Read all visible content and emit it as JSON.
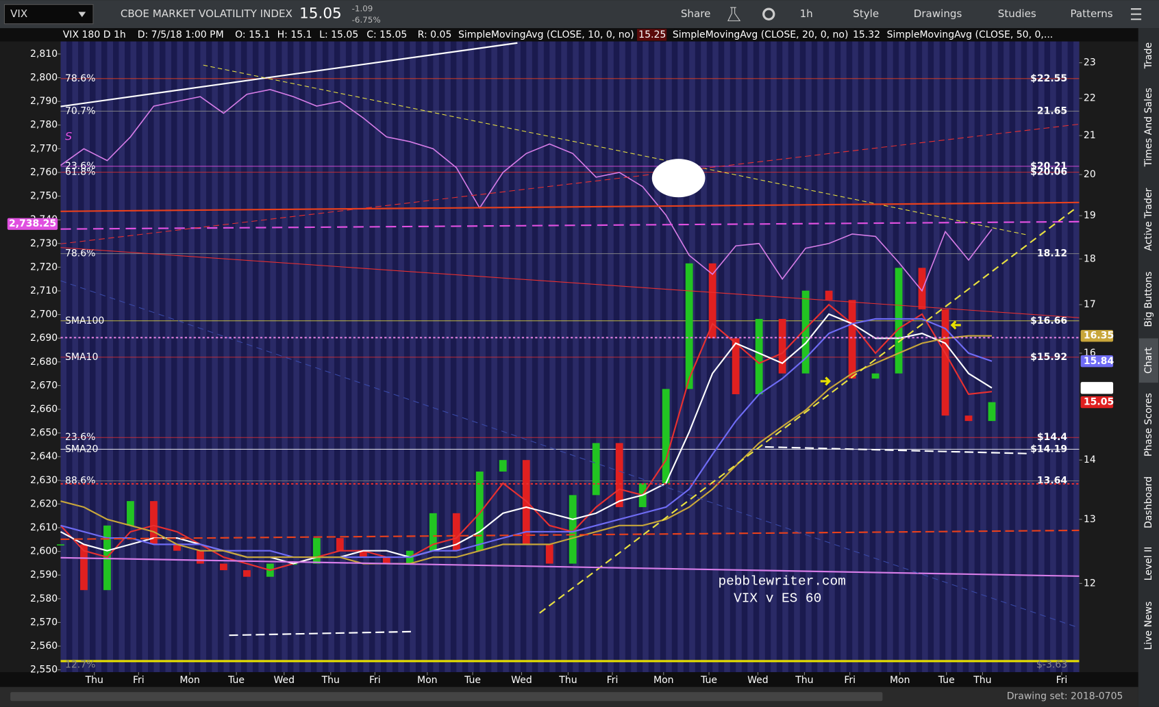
{
  "toolbar": {
    "symbol": "VIX",
    "description": "CBOE MARKET VOLATILITY INDEX",
    "last": 15.05,
    "change": "-1.09",
    "change_pct": "-6.75%",
    "buttons": [
      "Share",
      "1h",
      "Style",
      "Drawings",
      "Studies",
      "Patterns"
    ]
  },
  "info_bar": {
    "title": "VIX 180 D 1h",
    "date": "D: 7/5/18 1:00 PM",
    "open": "O: 15.1",
    "high": "H: 15.1",
    "low": "L: 15.05",
    "close": "C: 15.05",
    "range": "R: 0.05",
    "studies": [
      {
        "text": "SimpleMovingAvg (CLOSE, 10, 0, no)",
        "value": 15.25,
        "color": "#e83030"
      },
      {
        "text": "SimpleMovingAvg (CLOSE, 20, 0, no)",
        "value": 15.32,
        "color": "#ffffff"
      },
      {
        "text": "SimpleMovingAvg (CLOSE, 50, 0,...",
        "color": "#8a7cff"
      }
    ]
  },
  "chart_data": {
    "type": "line",
    "x": [
      0,
      2,
      4,
      6,
      8,
      10,
      12,
      14,
      16,
      18,
      20,
      22,
      24,
      26,
      28,
      30,
      32,
      34,
      36,
      38,
      40,
      42,
      44,
      46,
      48,
      50,
      52,
      54,
      56,
      58,
      60,
      62,
      64,
      66,
      68,
      70,
      72,
      74,
      76,
      78,
      80
    ],
    "xlim": [
      0,
      87.5
    ],
    "xticks": [
      {
        "value": 2.9,
        "label": "Thu"
      },
      {
        "value": 6.7,
        "label": "Fri"
      },
      {
        "value": 11.1,
        "label": "Mon"
      },
      {
        "value": 15.1,
        "label": "Tue"
      },
      {
        "value": 19.2,
        "label": "Wed"
      },
      {
        "value": 23.2,
        "label": "Thu"
      },
      {
        "value": 27,
        "label": "Fri"
      },
      {
        "value": 31.5,
        "label": "Mon"
      },
      {
        "value": 35.4,
        "label": "Tue"
      },
      {
        "value": 39.6,
        "label": "Wed"
      },
      {
        "value": 43.6,
        "label": "Thu"
      },
      {
        "value": 47.4,
        "label": "Fri"
      },
      {
        "value": 51.8,
        "label": "Mon"
      },
      {
        "value": 55.7,
        "label": "Tue"
      },
      {
        "value": 59.9,
        "label": "Wed"
      },
      {
        "value": 63.9,
        "label": "Thu"
      },
      {
        "value": 67.8,
        "label": "Fri"
      },
      {
        "value": 72.1,
        "label": "Mon"
      },
      {
        "value": 76.1,
        "label": "Tue"
      },
      {
        "value": 79.2,
        "label": "Thu"
      },
      {
        "value": 86,
        "label": "Fri"
      }
    ],
    "ylim": [
      2549,
      2815.3
    ],
    "yticks": [
      {
        "value": 2550,
        "label": "2,550"
      },
      {
        "value": 2560,
        "label": "2,560"
      },
      {
        "value": 2570,
        "label": "2,570"
      },
      {
        "value": 2580,
        "label": "2,580"
      },
      {
        "value": 2590,
        "label": "2,590"
      },
      {
        "value": 2600,
        "label": "2,600"
      },
      {
        "value": 2610,
        "label": "2,610"
      },
      {
        "value": 2620,
        "label": "2,620"
      },
      {
        "value": 2630,
        "label": "2,630"
      },
      {
        "value": 2640,
        "label": "2,640"
      },
      {
        "value": 2650,
        "label": "2,650"
      },
      {
        "value": 2660,
        "label": "2,660"
      },
      {
        "value": 2670,
        "label": "2,670"
      },
      {
        "value": 2680,
        "label": "2,680"
      },
      {
        "value": 2690,
        "label": "2,690"
      },
      {
        "value": 2700,
        "label": "2,700"
      },
      {
        "value": 2710,
        "label": "2,710"
      },
      {
        "value": 2720,
        "label": "2,720"
      },
      {
        "value": 2730,
        "label": "2,730"
      },
      {
        "value": 2740,
        "label": "2,740"
      },
      {
        "value": 2750,
        "label": "2,750"
      },
      {
        "value": 2760,
        "label": "2,760"
      },
      {
        "value": 2770,
        "label": "2,770"
      },
      {
        "value": 2780,
        "label": "2,780"
      },
      {
        "value": 2790,
        "label": "2,790"
      },
      {
        "value": 2800,
        "label": "2,800"
      },
      {
        "value": 2810,
        "label": "2,810"
      }
    ],
    "y2lim": [
      10.74,
      23.62
    ],
    "y2_log": true,
    "y2ticks": [
      12,
      13,
      14,
      16,
      17,
      18,
      19,
      20,
      21,
      22,
      23
    ],
    "es_last": {
      "value": 2738.25,
      "label": "2,738.25"
    },
    "series": [
      {
        "name": "VIX",
        "axis": "y2",
        "style": "bars",
        "color": "#22c422",
        "down_color": "#e02020",
        "last": 15.05,
        "values": [
          12.6,
          11.9,
          12.9,
          13.3,
          12.6,
          12.5,
          12.3,
          12.2,
          12.1,
          12.3,
          12.3,
          12.7,
          12.5,
          12.4,
          12.3,
          12.5,
          13.1,
          12.5,
          13.8,
          14.0,
          12.6,
          12.3,
          13.4,
          14.3,
          13.2,
          13.6,
          15.3,
          17.9,
          16.3,
          15.2,
          16.7,
          15.6,
          17.3,
          17.1,
          15.5,
          15.6,
          17.8,
          16.9,
          14.8,
          14.7,
          15.05
        ]
      },
      {
        "name": "SMA10",
        "axis": "y2",
        "style": "line",
        "color": "#e83030",
        "values": [
          12.9,
          12.5,
          12.4,
          12.8,
          12.9,
          12.8,
          12.6,
          12.4,
          12.3,
          12.2,
          12.3,
          12.4,
          12.5,
          12.5,
          12.4,
          12.4,
          12.6,
          12.7,
          13.1,
          13.6,
          13.3,
          12.9,
          12.8,
          13.2,
          13.5,
          13.4,
          14.0,
          15.5,
          16.6,
          16.2,
          15.8,
          16.0,
          16.5,
          17.0,
          16.6,
          16.0,
          16.5,
          16.8,
          16.0,
          15.2,
          15.25
        ]
      },
      {
        "name": "SMA20",
        "axis": "y2",
        "style": "line",
        "color": "#ffffff",
        "last": 15.32,
        "values": [
          12.8,
          12.6,
          12.5,
          12.6,
          12.7,
          12.7,
          12.6,
          12.5,
          12.4,
          12.4,
          12.3,
          12.4,
          12.4,
          12.5,
          12.5,
          12.4,
          12.5,
          12.6,
          12.8,
          13.1,
          13.2,
          13.1,
          13.0,
          13.1,
          13.3,
          13.4,
          13.6,
          14.5,
          15.6,
          16.2,
          16.0,
          15.8,
          16.2,
          16.8,
          16.6,
          16.3,
          16.3,
          16.4,
          16.2,
          15.6,
          15.32
        ]
      },
      {
        "name": "SMA50",
        "axis": "y2",
        "style": "line",
        "color": "#6f6cf5",
        "last": 15.84,
        "values": [
          12.9,
          12.8,
          12.7,
          12.7,
          12.6,
          12.6,
          12.6,
          12.5,
          12.5,
          12.5,
          12.4,
          12.4,
          12.4,
          12.4,
          12.4,
          12.4,
          12.5,
          12.5,
          12.6,
          12.7,
          12.8,
          12.8,
          12.8,
          12.9,
          13.0,
          13.1,
          13.2,
          13.5,
          14.1,
          14.7,
          15.2,
          15.5,
          15.9,
          16.4,
          16.6,
          16.7,
          16.7,
          16.7,
          16.5,
          16.0,
          15.84
        ]
      },
      {
        "name": "SMA100",
        "axis": "y2",
        "style": "line",
        "color": "#c8a63a",
        "last": 16.35,
        "values": [
          13.3,
          13.2,
          13.0,
          12.9,
          12.8,
          12.6,
          12.5,
          12.5,
          12.4,
          12.4,
          12.4,
          12.4,
          12.4,
          12.3,
          12.3,
          12.3,
          12.4,
          12.4,
          12.5,
          12.6,
          12.6,
          12.6,
          12.7,
          12.8,
          12.9,
          12.9,
          13.0,
          13.2,
          13.5,
          13.9,
          14.3,
          14.6,
          14.9,
          15.3,
          15.6,
          15.8,
          16.0,
          16.2,
          16.3,
          16.35,
          16.35
        ]
      },
      {
        "axis": "y",
        "style": "line",
        "color": "#d77de8",
        "values": [
          2763,
          2770,
          2765,
          2775,
          2788,
          2790,
          2792,
          2785,
          2793,
          2795,
          2792,
          2788,
          2790,
          2783,
          2775,
          2773,
          2770,
          2762,
          2745,
          2760,
          2768,
          2772,
          2768,
          2758,
          2760,
          2754,
          2742,
          2725,
          2717,
          2729,
          2730,
          2715,
          2728,
          2730,
          2734,
          2733,
          2722,
          2710,
          2735,
          2723,
          2736
        ]
      }
    ],
    "levels": [
      {
        "value": 22.55,
        "label": "$22.55",
        "left": "78.6%",
        "color": "#e8401c"
      },
      {
        "value": 21.65,
        "label": "21.65",
        "left": "70.7%",
        "color": "#8a8a8a"
      },
      {
        "value": 20.21,
        "label": "$20.21",
        "left": "23.6%",
        "color": "#e050e0"
      },
      {
        "value": 20.06,
        "label": "$20.06",
        "left": "61.8%",
        "color": "#e83030"
      },
      {
        "value": 18.12,
        "label": "18.12",
        "left": "78.6%",
        "color": "#8a8a8a"
      },
      {
        "value": 16.66,
        "label": "$16.66",
        "left": "SMA100",
        "color": "#e8e040"
      },
      {
        "value": 15.92,
        "label": "$15.92",
        "left": "SMA10",
        "color": "#e83030"
      },
      {
        "value": 14.4,
        "label": "$14.4",
        "left": "23.6%",
        "color": "#e83030"
      },
      {
        "value": 14.19,
        "label": "$14.19",
        "left": "SMA20",
        "color": "#ffffff"
      },
      {
        "value": 13.64,
        "label": "13.64",
        "left": "88.6%",
        "color": "#8a8a8a"
      }
    ],
    "bottom_labels": {
      "left": "12.7%",
      "right": "$-3.63"
    },
    "annotations": {
      "s": "S",
      "site": "pebblewriter.com",
      "subtitle": "VIX v ES 60"
    }
  },
  "side_tabs": [
    "Trade",
    "Times And Sales",
    "Active Trader",
    "Big Buttons",
    "Chart",
    "Phase Scores",
    "Dashboard",
    "Level II",
    "Live News"
  ],
  "footer": {
    "drawing_set": "Drawing set: 2018-0705"
  }
}
